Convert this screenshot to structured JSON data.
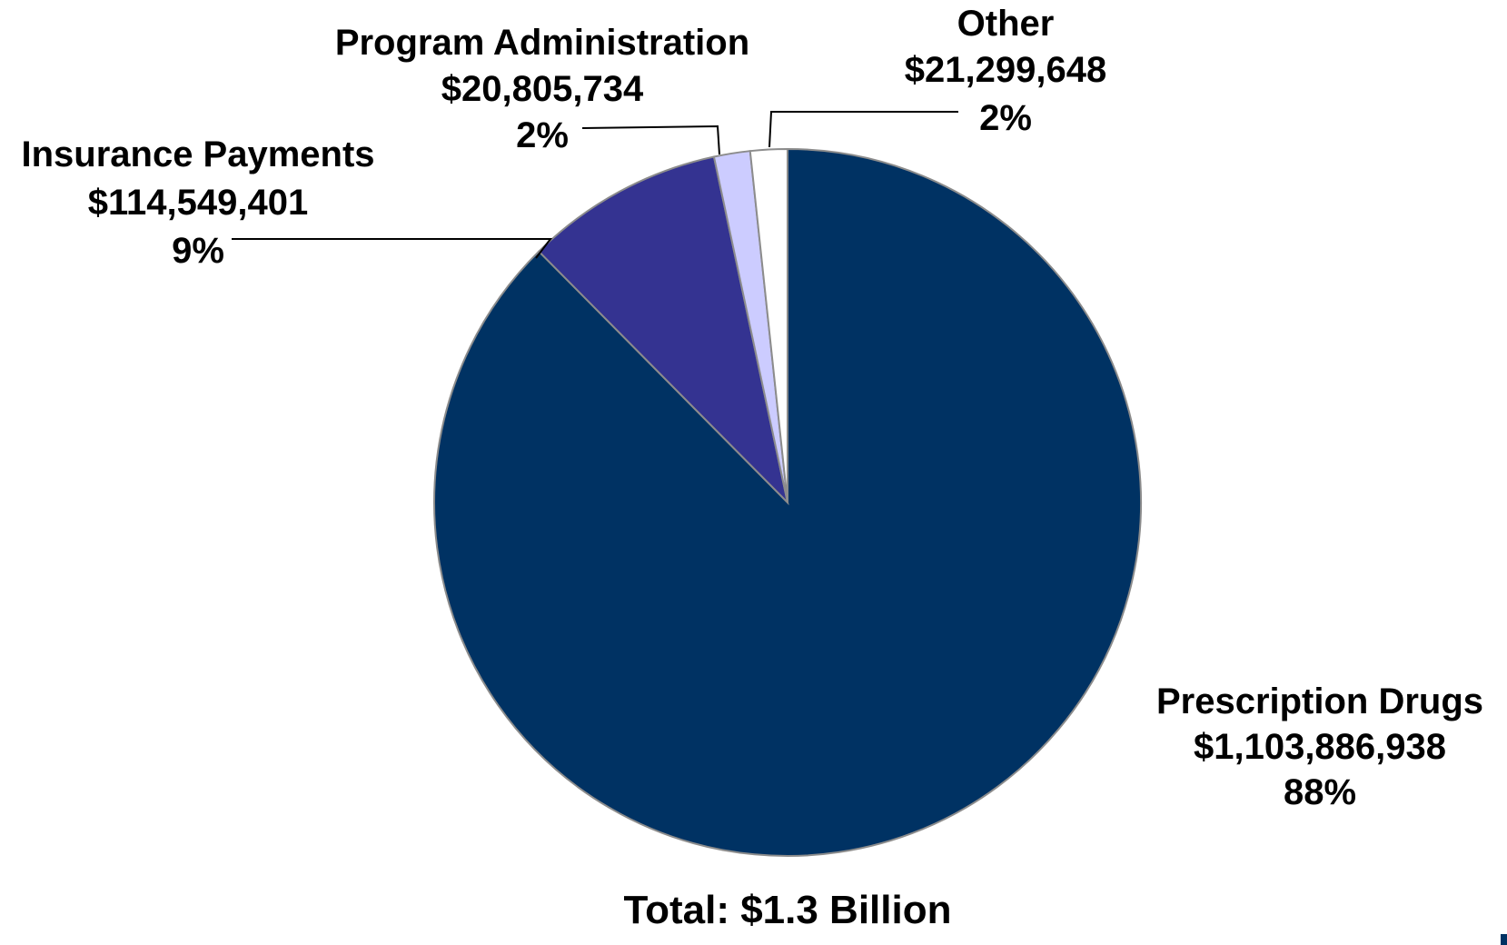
{
  "chart_data": {
    "type": "pie",
    "title": "",
    "total_label": "Total: $1.3 Billion",
    "start": "top, clockwise",
    "slices": [
      {
        "name": "Prescription Drugs",
        "amount": "$1,103,886,938",
        "pct_label": "88%",
        "value": 1103886938,
        "color": "#003263"
      },
      {
        "name": "Insurance Payments",
        "amount": "$114,549,401",
        "pct_label": "9%",
        "value": 114549401,
        "color": "#343391"
      },
      {
        "name": "Program Administration",
        "amount": "$20,805,734",
        "pct_label": "2%",
        "value": 20805734,
        "color": "#ccccff"
      },
      {
        "name": "Other",
        "amount": "$21,299,648",
        "pct_label": "2%",
        "value": 21299648,
        "color": "#ffffff"
      }
    ]
  }
}
